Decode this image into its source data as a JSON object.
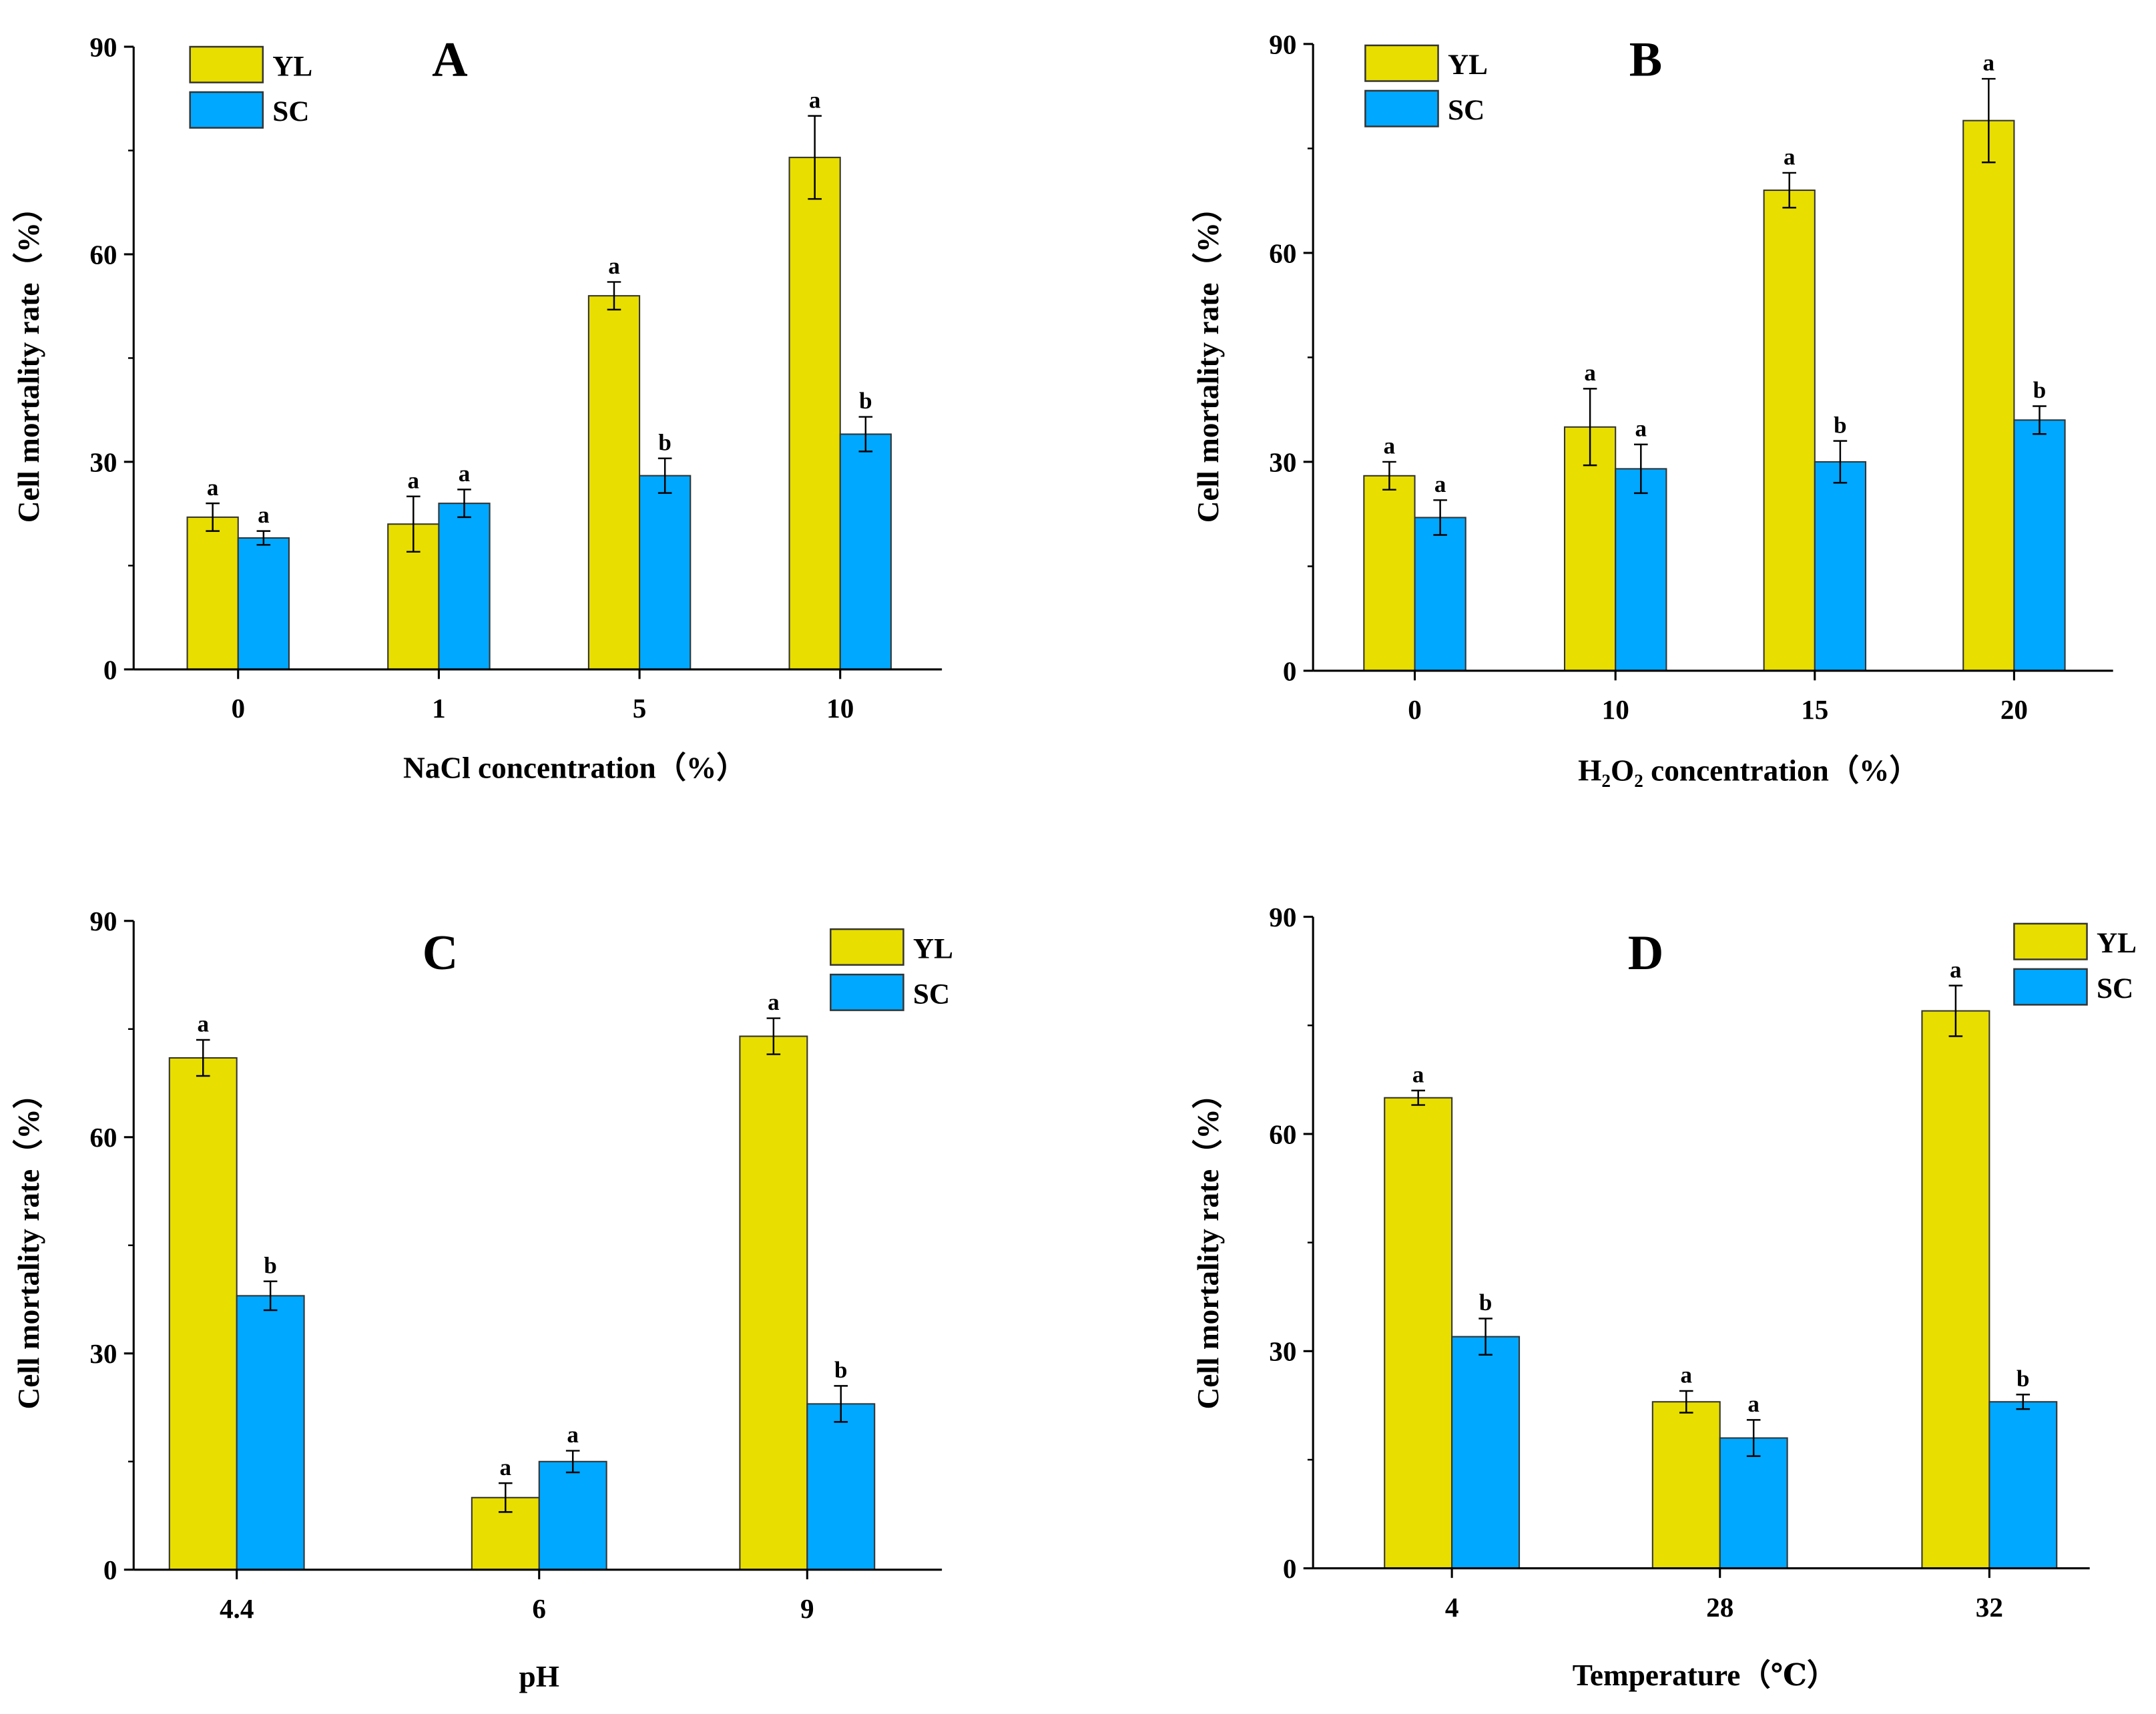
{
  "colors": {
    "YL": "#e8de00",
    "SC": "#00a8ff"
  },
  "chart_data": [
    {
      "type": "bar",
      "panel": "A",
      "xlabel": "NaCl concentration（%）",
      "ylabel": "Cell mortality rate（%）",
      "ylim": [
        0,
        90
      ],
      "yticks": [
        0,
        30,
        60,
        90
      ],
      "legend_position": "top-left",
      "categories": [
        "0",
        "1",
        "5",
        "10"
      ],
      "series": [
        {
          "name": "YL",
          "values": [
            22,
            21,
            54,
            74
          ],
          "errors": [
            2,
            4,
            2,
            6
          ],
          "letters": [
            "a",
            "a",
            "a",
            "a"
          ]
        },
        {
          "name": "SC",
          "values": [
            19,
            24,
            28,
            34
          ],
          "errors": [
            1,
            2,
            2.5,
            2.5
          ],
          "letters": [
            "a",
            "a",
            "b",
            "b"
          ]
        }
      ]
    },
    {
      "type": "bar",
      "panel": "B",
      "xlabel": "H₂O₂ concentration（%）",
      "ylabel": "Cell mortality rate（%）",
      "ylim": [
        0,
        90
      ],
      "yticks": [
        0,
        30,
        60,
        90
      ],
      "legend_position": "top-left",
      "categories": [
        "0",
        "10",
        "15",
        "20"
      ],
      "series": [
        {
          "name": "YL",
          "values": [
            28,
            35,
            69,
            79
          ],
          "errors": [
            2,
            5.5,
            2.5,
            6
          ],
          "letters": [
            "a",
            "a",
            "a",
            "a"
          ]
        },
        {
          "name": "SC",
          "values": [
            22,
            29,
            30,
            36
          ],
          "errors": [
            2.5,
            3.5,
            3,
            2
          ],
          "letters": [
            "a",
            "a",
            "b",
            "b"
          ]
        }
      ]
    },
    {
      "type": "bar",
      "panel": "C",
      "xlabel": "pH",
      "ylabel": "Cell mortality rate（%）",
      "ylim": [
        0,
        90
      ],
      "yticks": [
        0,
        30,
        60,
        90
      ],
      "legend_position": "top-right",
      "categories": [
        "4.4",
        "6",
        "9"
      ],
      "series": [
        {
          "name": "YL",
          "values": [
            71,
            10,
            74
          ],
          "errors": [
            2.5,
            2,
            2.5
          ],
          "letters": [
            "a",
            "a",
            "a"
          ]
        },
        {
          "name": "SC",
          "values": [
            38,
            15,
            23
          ],
          "errors": [
            2,
            1.5,
            2.5
          ],
          "letters": [
            "b",
            "a",
            "b"
          ]
        }
      ]
    },
    {
      "type": "bar",
      "panel": "D",
      "xlabel": "Temperature（℃）",
      "ylabel": "Cell mortality rate（%）",
      "ylim": [
        0,
        90
      ],
      "yticks": [
        0,
        30,
        60,
        90
      ],
      "legend_position": "top-right",
      "categories": [
        "4",
        "28",
        "32"
      ],
      "series": [
        {
          "name": "YL",
          "values": [
            65,
            23,
            77
          ],
          "errors": [
            1,
            1.5,
            3.5
          ],
          "letters": [
            "a",
            "a",
            "a"
          ]
        },
        {
          "name": "SC",
          "values": [
            32,
            18,
            23
          ],
          "errors": [
            2.5,
            2.5,
            1
          ],
          "letters": [
            "b",
            "a",
            "b"
          ]
        }
      ]
    }
  ]
}
